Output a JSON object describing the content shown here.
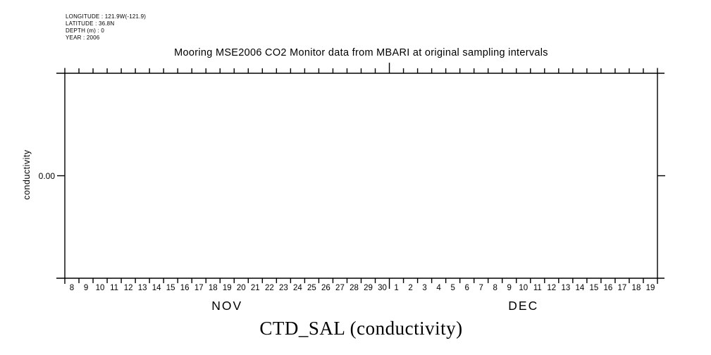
{
  "page": {
    "background": "#ffffff",
    "ink": "#000000"
  },
  "info_block": {
    "lines": [
      "LONGITUDE : 121.9W(-121.9)",
      "LATITUDE : 36.8N",
      "DEPTH (m) : 0",
      "YEAR : 2006"
    ]
  },
  "chart_data": {
    "type": "line",
    "title": "Mooring MSE2006 CO2 Monitor data from MBARI at original sampling intervals",
    "bottom_title": "CTD_SAL (conductivity)",
    "ylabel": "conductivity",
    "xlabel": "",
    "grid": false,
    "legend": false,
    "y_tick_labels": [
      "0.00"
    ],
    "y_tick_position": "center",
    "x_axis": {
      "tick_interval": "day",
      "months": [
        {
          "label": "NOV",
          "day_labels": [
            "8",
            "9",
            "10",
            "11",
            "12",
            "13",
            "14",
            "15",
            "16",
            "17",
            "18",
            "19",
            "20",
            "21",
            "22",
            "23",
            "24",
            "25",
            "26",
            "27",
            "28",
            "29",
            "30"
          ]
        },
        {
          "label": "DEC",
          "day_labels": [
            "1",
            "2",
            "3",
            "4",
            "5",
            "6",
            "7",
            "8",
            "9",
            "10",
            "11",
            "12",
            "13",
            "14",
            "15",
            "16",
            "17",
            "18",
            "19"
          ]
        }
      ]
    },
    "series": []
  }
}
